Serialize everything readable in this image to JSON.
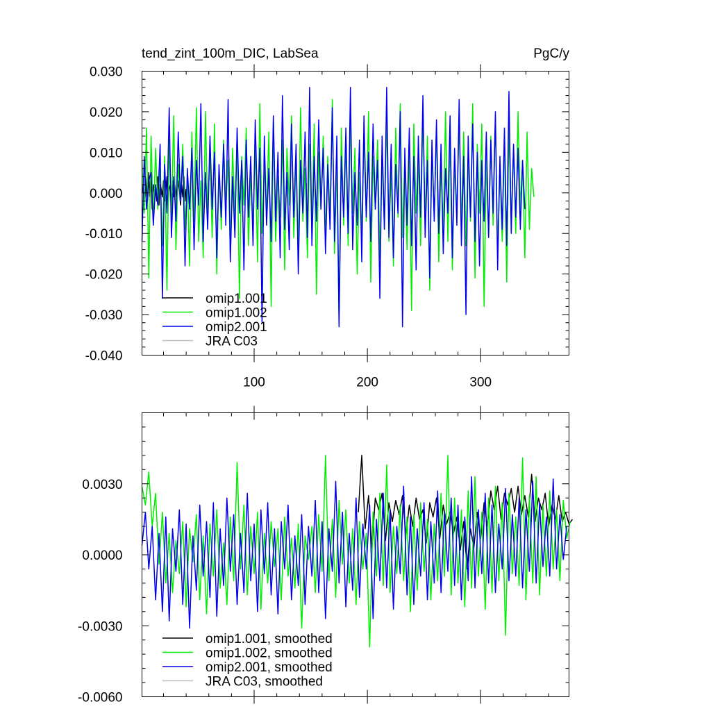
{
  "chart_data": [
    {
      "type": "line",
      "title": "tend_zint_100m_DIC, LabSea",
      "units": "PgC/y",
      "xlabel": "",
      "ylabel": "",
      "xlim": [
        1,
        378
      ],
      "ylim": [
        -0.04,
        0.03
      ],
      "xticks": [
        100,
        200,
        300
      ],
      "xtick_labels": [
        "100",
        "200",
        "300"
      ],
      "yticks": [
        -0.04,
        -0.03,
        -0.02,
        -0.01,
        0.0,
        0.01,
        0.02,
        0.03
      ],
      "ytick_labels": [
        "-0.040",
        "-0.030",
        "-0.020",
        "-0.010",
        "0.000",
        "0.010",
        "0.020",
        "0.030"
      ],
      "legend_position": "bottom-left",
      "legend": [
        {
          "label": "omip1.001",
          "color": "#000000"
        },
        {
          "label": "omip1.002",
          "color": "#00ee00"
        },
        {
          "label": "omip2.001",
          "color": "#0000ee"
        },
        {
          "label": "JRA C03",
          "color": "#bbbbbb"
        }
      ],
      "series": [
        {
          "name": "omip1.001",
          "color": "#000000",
          "x_start": 1,
          "x_step": 1,
          "values": [
            0.0,
            0.002,
            -0.003,
            0.004,
            0.001,
            -0.002,
            0.005,
            -0.001,
            0.003,
            -0.004,
            0.002,
            0.0,
            0.001,
            -0.002,
            0.004,
            -0.003,
            0.002,
            0.001,
            -0.001,
            0.003,
            -0.002,
            0.0,
            0.004,
            -0.003,
            0.001,
            0.002,
            -0.004,
            0.003,
            -0.001,
            0.002,
            0.0,
            -0.002,
            0.003,
            0.001,
            -0.003,
            0.002,
            -0.001,
            0.004,
            -0.002,
            0.001
          ]
        },
        {
          "name": "omip1.002",
          "color": "#00ee00",
          "x_start": 1,
          "x_step": 2,
          "values": [
            0.008,
            -0.005,
            0.016,
            -0.021,
            0.014,
            -0.008,
            0.011,
            -0.004,
            0.006,
            -0.013,
            0.009,
            -0.024,
            0.013,
            -0.006,
            0.019,
            -0.014,
            0.007,
            -0.002,
            0.012,
            -0.009,
            0.004,
            -0.018,
            0.015,
            -0.007,
            0.021,
            -0.012,
            0.003,
            -0.016,
            0.02,
            -0.005,
            0.01,
            -0.011,
            0.017,
            -0.02,
            0.006,
            -0.009,
            0.013,
            -0.004,
            0.008,
            -0.015,
            0.011,
            -0.006,
            0.014,
            -0.026,
            0.009,
            -0.003,
            0.016,
            -0.013,
            0.005,
            -0.008,
            0.012,
            -0.017,
            0.022,
            -0.01,
            0.007,
            -0.005,
            0.015,
            -0.028,
            0.018,
            -0.012,
            0.004,
            -0.006,
            0.013,
            -0.019,
            0.011,
            -0.003,
            0.019,
            -0.011,
            0.008,
            -0.014,
            0.021,
            -0.007,
            0.006,
            -0.016,
            0.012,
            -0.009,
            0.017,
            -0.025,
            0.01,
            -0.004,
            0.014,
            -0.012,
            0.009,
            -0.006,
            0.023,
            -0.015,
            0.007,
            -0.031,
            0.016,
            -0.008,
            0.012,
            -0.013,
            0.018,
            -0.005,
            0.011,
            -0.02,
            0.005,
            -0.01,
            0.015,
            -0.007,
            0.02,
            -0.022,
            0.009,
            -0.004,
            0.013,
            -0.016,
            0.01,
            -0.009,
            0.019,
            -0.012,
            0.006,
            -0.018,
            0.016,
            -0.006,
            0.022,
            -0.011,
            0.008,
            -0.014,
            0.012,
            -0.029,
            0.017,
            -0.005,
            0.009,
            -0.013,
            0.021,
            -0.008,
            0.014,
            -0.024,
            0.011,
            -0.006,
            0.016,
            -0.017,
            0.007,
            -0.01,
            0.02,
            -0.012,
            0.013,
            -0.019,
            0.008,
            -0.004,
            0.018,
            -0.009,
            0.015,
            -0.013,
            0.01,
            -0.007,
            0.022,
            -0.021,
            0.012,
            -0.005,
            0.017,
            -0.028,
            0.009,
            -0.011,
            0.014,
            -0.008,
            0.019,
            -0.015,
            0.006,
            -0.012,
            0.013,
            -0.022,
            0.016,
            -0.007,
            0.011,
            -0.01,
            0.02,
            -0.004,
            0.008,
            -0.016,
            0.015,
            -0.009,
            0.006,
            -0.001
          ]
        },
        {
          "name": "omip2.001",
          "color": "#0000ee",
          "x_start": 1,
          "x_step": 2,
          "values": [
            -0.012,
            0.009,
            -0.004,
            0.003,
            0.005,
            -0.008,
            0.002,
            -0.003,
            0.012,
            -0.026,
            0.007,
            -0.005,
            0.021,
            -0.011,
            0.004,
            -0.007,
            0.015,
            -0.002,
            0.009,
            -0.018,
            0.006,
            -0.004,
            0.011,
            -0.014,
            0.008,
            -0.003,
            0.022,
            -0.012,
            0.005,
            -0.009,
            0.014,
            -0.004,
            0.01,
            -0.016,
            0.007,
            -0.006,
            0.012,
            -0.008,
            0.023,
            -0.017,
            0.004,
            -0.011,
            0.016,
            -0.005,
            0.008,
            -0.019,
            0.013,
            -0.006,
            0.009,
            -0.013,
            0.018,
            -0.004,
            0.011,
            -0.032,
            0.014,
            -0.008,
            0.006,
            -0.012,
            0.019,
            -0.007,
            0.01,
            -0.016,
            0.024,
            -0.009,
            0.005,
            -0.014,
            0.017,
            -0.006,
            0.012,
            -0.02,
            0.008,
            -0.005,
            0.015,
            -0.011,
            0.026,
            -0.013,
            0.009,
            -0.007,
            0.018,
            -0.004,
            0.011,
            -0.015,
            0.007,
            -0.009,
            0.021,
            -0.012,
            0.014,
            -0.033,
            0.009,
            -0.006,
            0.016,
            -0.01,
            0.026,
            -0.014,
            0.005,
            -0.008,
            0.013,
            -0.017,
            0.019,
            -0.006,
            0.01,
            -0.012,
            0.017,
            -0.004,
            0.008,
            -0.026,
            0.014,
            -0.009,
            0.026,
            -0.011,
            0.012,
            -0.016,
            0.007,
            -0.005,
            0.02,
            -0.033,
            0.011,
            -0.008,
            0.016,
            -0.013,
            0.009,
            -0.019,
            0.014,
            -0.006,
            0.024,
            -0.011,
            0.008,
            -0.021,
            0.013,
            -0.007,
            0.018,
            -0.01,
            0.012,
            -0.015,
            0.006,
            -0.005,
            0.019,
            -0.016,
            0.011,
            -0.008,
            0.023,
            -0.013,
            0.009,
            -0.03,
            0.014,
            -0.006,
            0.017,
            -0.012,
            0.01,
            -0.018,
            0.008,
            -0.007,
            0.015,
            -0.011,
            0.013,
            -0.005,
            0.02,
            -0.019,
            0.009,
            -0.009,
            0.016,
            -0.013,
            0.025,
            -0.01,
            0.012,
            -0.006,
            0.011,
            -0.009,
            0.008,
            -0.004
          ]
        },
        {
          "name": "JRA C03",
          "color": "#bbbbbb",
          "x_start": 1,
          "x_step": 1,
          "values": []
        }
      ]
    },
    {
      "type": "line",
      "title": "",
      "xlabel": "",
      "ylabel": "",
      "xlim": [
        1,
        378
      ],
      "ylim": [
        -0.006,
        0.006
      ],
      "xticks": [
        100,
        200,
        300
      ],
      "xtick_labels": [
        "",
        "",
        ""
      ],
      "yticks": [
        -0.006,
        -0.003,
        0.0,
        0.003
      ],
      "ytick_labels": [
        "-0.0060",
        "-0.0030",
        "0.0000",
        "0.0030"
      ],
      "legend_position": "bottom-left",
      "legend": [
        {
          "label": "omip1.001, smoothed",
          "color": "#000000"
        },
        {
          "label": "omip1.002, smoothed",
          "color": "#00ee00"
        },
        {
          "label": "omip2.001, smoothed",
          "color": "#0000ee"
        },
        {
          "label": "JRA C03, smoothed",
          "color": "#bbbbbb"
        }
      ],
      "series": [
        {
          "name": "omip1.001, smoothed",
          "color": "#000000",
          "x_start": 192,
          "x_step": 3,
          "values": [
            0.0018,
            0.0042,
            0.0011,
            0.0025,
            0.0003,
            0.0024,
            0.0019,
            0.0026,
            0.0006,
            0.0022,
            0.0014,
            0.0023,
            0.0017,
            0.0025,
            0.0008,
            0.0021,
            0.0012,
            0.0024,
            0.0015,
            0.0019,
            0.0005,
            0.0022,
            0.0016,
            0.0024,
            0.0007,
            0.0021,
            0.0013,
            0.0018,
            0.0009,
            0.0016,
            0.0002,
            0.0014,
            -0.0006,
            0.0011,
            0.0003,
            0.0018,
            0.0007,
            0.0022,
            0.0012,
            0.0027,
            0.0019,
            0.0029,
            0.0015,
            0.0026,
            0.0021,
            0.0028,
            0.0018,
            0.0029,
            0.0017,
            0.0025,
            0.0016,
            0.0034,
            0.0014,
            0.0024,
            0.0019,
            0.0026,
            0.0012,
            0.0021,
            0.0015,
            0.0025,
            0.0014,
            0.0018,
            0.0013,
            0.0015
          ]
        },
        {
          "name": "omip1.002, smoothed",
          "color": "#00ee00",
          "x_start": 1,
          "x_step": 3,
          "values": [
            0.0029,
            0.0021,
            0.0035,
            0.0012,
            0.0026,
            -0.0004,
            0.0018,
            -0.0012,
            0.0009,
            -0.0016,
            0.0006,
            -0.0008,
            0.0014,
            -0.0022,
            0.0011,
            -0.0003,
            0.0017,
            -0.0019,
            0.0008,
            -0.0025,
            0.0013,
            -0.0009,
            0.0019,
            -0.0014,
            0.0005,
            -0.0021,
            0.0016,
            -0.0011,
            0.0039,
            -0.0006,
            0.0021,
            -0.0017,
            0.0012,
            -0.0008,
            0.0018,
            -0.0023,
            0.0009,
            -0.0012,
            0.0014,
            -0.0005,
            0.0011,
            -0.0019,
            0.0016,
            -0.0009,
            0.0007,
            -0.0014,
            0.0013,
            -0.0031,
            0.0008,
            -0.0002,
            0.0012,
            -0.0016,
            0.0017,
            -0.0007,
            0.0042,
            -0.0011,
            0.0015,
            -0.0018,
            0.0023,
            -0.0004,
            0.0019,
            -0.0012,
            0.0011,
            -0.0021,
            0.0014,
            -0.0006,
            0.0009,
            -0.0039,
            0.0018,
            -0.0009,
            0.0026,
            -0.0013,
            0.0038,
            -0.0016,
            0.0012,
            -0.0008,
            0.0021,
            -0.0011,
            0.0016,
            -0.0024,
            0.0017,
            -0.0015,
            0.0022,
            -0.0007,
            0.0015,
            -0.0019,
            0.0013,
            -0.0011,
            0.0026,
            -0.0009,
            0.0042,
            -0.0017,
            0.0024,
            -0.0012,
            0.0019,
            -0.0022,
            0.0027,
            -0.0014,
            0.0033,
            -0.0009,
            0.0018,
            -0.0023,
            0.0024,
            -0.0016,
            0.0029,
            -0.0011,
            0.0022,
            -0.0034,
            0.0026,
            -0.0008,
            0.0016,
            -0.0013,
            0.0041,
            -0.0019,
            0.0025,
            -0.0012,
            0.0033,
            -0.0017,
            0.0021,
            -0.0009,
            0.0027,
            -0.0006,
            0.0019,
            -0.0011,
            0.0023,
            0.0007,
            0.0014
          ]
        },
        {
          "name": "omip2.001, smoothed",
          "color": "#0000ee",
          "x_start": 1,
          "x_step": 3,
          "values": [
            0.0004,
            0.0018,
            -0.0006,
            0.0012,
            -0.0019,
            0.0009,
            -0.0024,
            0.0016,
            -0.0028,
            0.0011,
            -0.0007,
            0.0019,
            -0.0021,
            0.0013,
            -0.0031,
            0.0008,
            -0.0015,
            0.0021,
            -0.0009,
            0.0014,
            -0.0018,
            0.0022,
            -0.0026,
            0.0011,
            -0.0013,
            0.0024,
            -0.0007,
            0.0017,
            -0.0021,
            0.0009,
            -0.0016,
            0.0026,
            -0.0011,
            0.0013,
            -0.0024,
            0.0019,
            -0.0008,
            0.0022,
            -0.0017,
            0.0011,
            -0.0025,
            0.0014,
            -0.0006,
            0.0021,
            -0.0019,
            0.0008,
            -0.0013,
            0.0017,
            -0.0021,
            0.0012,
            -0.0009,
            0.0023,
            -0.0016,
            0.0014,
            -0.0027,
            0.0011,
            -0.0007,
            0.0031,
            -0.0012,
            0.0018,
            -0.0022,
            0.0009,
            -0.0015,
            0.0024,
            -0.0018,
            0.0013,
            -0.0006,
            0.0021,
            -0.0027,
            0.0015,
            -0.0011,
            0.0026,
            -0.0014,
            0.0019,
            -0.0023,
            0.0012,
            -0.0008,
            0.0029,
            -0.0017,
            0.0016,
            -0.0021,
            0.0011,
            -0.0009,
            0.0022,
            -0.0019,
            0.0014,
            -0.0012,
            0.0027,
            -0.0016,
            0.0018,
            -0.0007,
            0.0024,
            -0.0013,
            0.0021,
            -0.0019,
            0.0016,
            -0.0011,
            0.0033,
            -0.0014,
            0.0019,
            -0.0008,
            0.0026,
            -0.0012,
            0.0021,
            -0.0016,
            0.0013,
            -0.0006,
            0.0028,
            -0.0011,
            0.0017,
            -0.0009,
            0.0024,
            -0.0014,
            0.0019,
            -0.0007,
            0.0031,
            -0.0012,
            0.0022,
            -0.0005,
            0.0016,
            -0.0009,
            0.0032,
            -0.0006,
            0.0017,
            -0.0002,
            0.0012
          ]
        },
        {
          "name": "JRA C03, smoothed",
          "color": "#bbbbbb",
          "x_start": 1,
          "x_step": 1,
          "values": []
        }
      ]
    }
  ]
}
